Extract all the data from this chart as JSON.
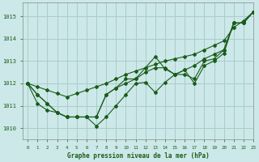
{
  "background_color": "#cce8e8",
  "grid_color": "#aacccc",
  "line_color": "#1a5c1a",
  "xlabel": "Graphe pression niveau de la mer (hPa)",
  "xlim": [
    -0.5,
    23
  ],
  "ylim": [
    1009.5,
    1015.6
  ],
  "yticks": [
    1010,
    1011,
    1012,
    1013,
    1014,
    1015
  ],
  "xticks": [
    0,
    1,
    2,
    3,
    4,
    5,
    6,
    7,
    8,
    9,
    10,
    11,
    12,
    13,
    14,
    15,
    16,
    17,
    18,
    19,
    20,
    21,
    22,
    23
  ],
  "series_smooth": [
    1012.0,
    1011.85,
    1011.7,
    1011.55,
    1011.4,
    1011.55,
    1011.7,
    1011.85,
    1012.0,
    1012.2,
    1012.4,
    1012.55,
    1012.7,
    1012.85,
    1013.0,
    1013.1,
    1013.2,
    1013.3,
    1013.5,
    1013.7,
    1013.9,
    1014.5,
    1014.8,
    1015.2
  ],
  "series_zigzag": [
    1012.0,
    1011.1,
    1010.8,
    1010.7,
    1010.5,
    1010.5,
    1010.5,
    1010.1,
    1010.5,
    1011.0,
    1011.5,
    1012.0,
    1012.05,
    1011.6,
    1012.05,
    1012.4,
    1012.6,
    1012.0,
    1012.8,
    1013.0,
    1013.35,
    1014.7,
    1014.7,
    1015.2
  ],
  "series_mid1": [
    1012.0,
    1011.5,
    1011.1,
    1010.7,
    1010.5,
    1010.5,
    1010.5,
    1010.5,
    1011.5,
    1011.8,
    1012.0,
    1012.2,
    1012.5,
    1012.7,
    1012.7,
    1012.4,
    1012.6,
    1012.8,
    1013.1,
    1013.3,
    1013.5,
    1014.7,
    1014.7,
    1015.2
  ],
  "series_mid2": [
    1012.0,
    1011.5,
    1011.1,
    1010.7,
    1010.5,
    1010.5,
    1010.5,
    1010.5,
    1011.5,
    1011.8,
    1012.2,
    1012.2,
    1012.7,
    1013.2,
    1012.65,
    1012.4,
    1012.4,
    1012.2,
    1013.0,
    1013.1,
    1013.5,
    1014.7,
    1014.7,
    1015.2
  ]
}
